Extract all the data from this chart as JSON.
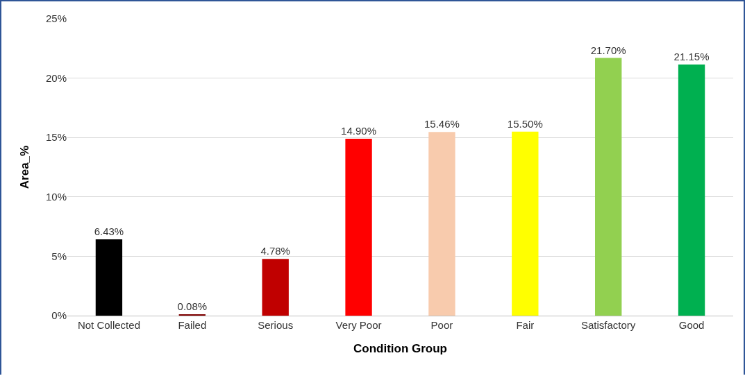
{
  "chart_data": {
    "type": "bar",
    "xlabel": "Condition Group",
    "ylabel": "Area_%",
    "categories": [
      "Not Collected",
      "Failed",
      "Serious",
      "Very Poor",
      "Poor",
      "Fair",
      "Satisfactory",
      "Good"
    ],
    "values": [
      6.43,
      0.08,
      4.78,
      14.9,
      15.46,
      15.5,
      21.7,
      21.15
    ],
    "colors": [
      "#000000",
      "#7f0000",
      "#c00000",
      "#ff0000",
      "#f8cbad",
      "#ffff00",
      "#92d050",
      "#00b050"
    ],
    "value_labels": [
      "6.43%",
      "0.08%",
      "4.78%",
      "14.90%",
      "15.46%",
      "15.50%",
      "21.70%",
      "21.15%"
    ],
    "ylim": [
      0,
      25
    ],
    "yticks": [
      {
        "value": 0,
        "label": "0%"
      },
      {
        "value": 5,
        "label": "5%"
      },
      {
        "value": 10,
        "label": "10%"
      },
      {
        "value": 15,
        "label": "15%"
      },
      {
        "value": 20,
        "label": "20%"
      },
      {
        "value": 25,
        "label": "25%"
      }
    ],
    "grid": "y"
  }
}
